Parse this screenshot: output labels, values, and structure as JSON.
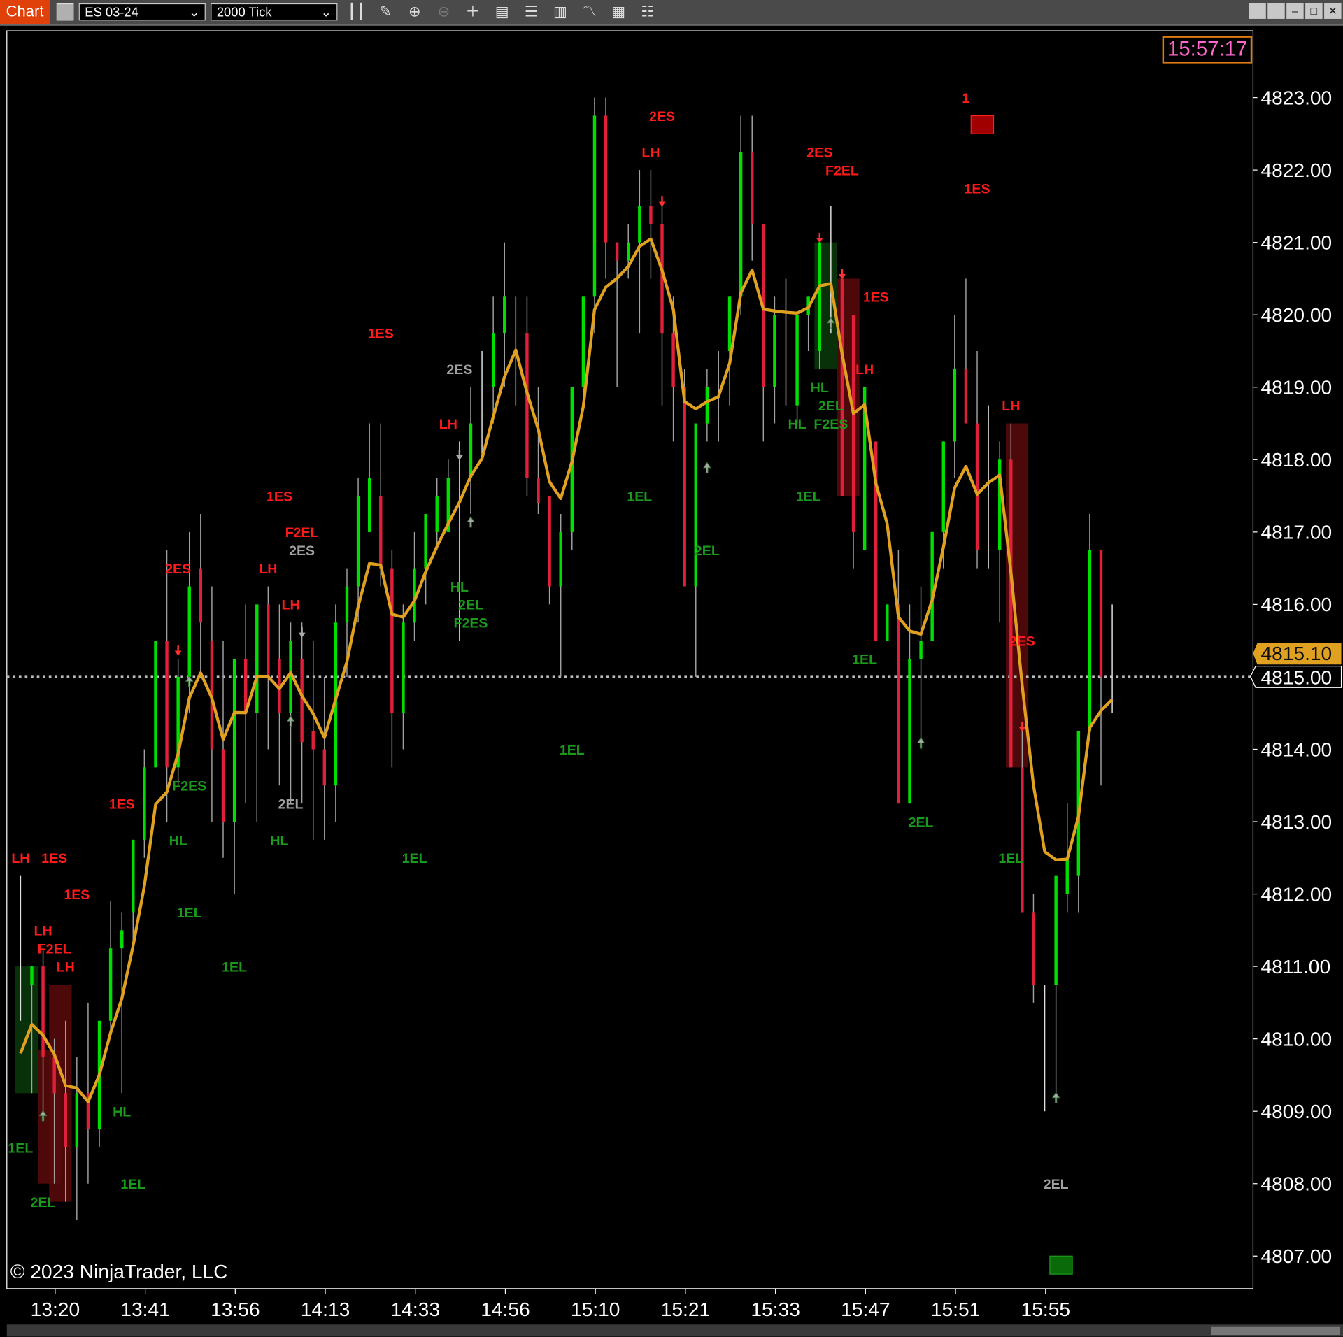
{
  "toolbar": {
    "title": "Chart",
    "instrument": "ES 03-24",
    "interval": "2000 Tick",
    "icons": [
      "bars-type-icon",
      "pencil-icon",
      "zoom-in-icon",
      "zoom-out-icon",
      "crosshair-icon",
      "data-box-icon",
      "templates-icon",
      "strategies-icon",
      "indicators-icon",
      "calculator-icon",
      "properties-icon"
    ],
    "window_buttons": [
      "tile-icon",
      "tile2-icon",
      "minimize-icon",
      "maximize-icon",
      "close-icon"
    ]
  },
  "clock": "15:57:17",
  "copyright": "© 2023 NinjaTrader, LLC",
  "colors": {
    "up": "#00e000",
    "down": "#e0203a",
    "wick": "#a0a0a0",
    "ema": "#e0a020",
    "label_red": "#ff1a1a",
    "label_green": "#1a9a1a",
    "label_gray": "#a0a0a0",
    "clock_border": "#e07a10",
    "clock_text": "#ff66cc",
    "current_price_bg": "#000000",
    "last_price_bg": "#e0a020"
  },
  "chart_data": {
    "type": "candlestick",
    "instrument": "ES 03-24",
    "interval": "2000 Tick",
    "ylim": [
      4806.6,
      4823.9
    ],
    "y_ticks": [
      "4823.00",
      "4822.00",
      "4821.00",
      "4820.00",
      "4819.00",
      "4818.00",
      "4817.00",
      "4816.00",
      "4815.00",
      "4814.00",
      "4813.00",
      "4812.00",
      "4811.00",
      "4810.00",
      "4809.00",
      "4808.00",
      "4807.00"
    ],
    "x_ticks": [
      {
        "bar": 3,
        "label": "13:20"
      },
      {
        "bar": 11,
        "label": "13:41"
      },
      {
        "bar": 19,
        "label": "13:56"
      },
      {
        "bar": 27,
        "label": "14:13"
      },
      {
        "bar": 35,
        "label": "14:33"
      },
      {
        "bar": 43,
        "label": "14:56"
      },
      {
        "bar": 51,
        "label": "15:10"
      },
      {
        "bar": 59,
        "label": "15:21"
      },
      {
        "bar": 67,
        "label": "15:33"
      },
      {
        "bar": 75,
        "label": "15:47"
      },
      {
        "bar": 83,
        "label": "15:51"
      },
      {
        "bar": 91,
        "label": "15:55"
      }
    ],
    "ohlc": [
      [
        4811,
        4812.25,
        4810.25,
        4811
      ],
      [
        4810.75,
        4811,
        4809.25,
        4811
      ],
      [
        4811,
        4811.25,
        4809,
        4809.75
      ],
      [
        4809.75,
        4810,
        4808,
        4809.25
      ],
      [
        4809.25,
        4810.25,
        4807.75,
        4808.5
      ],
      [
        4808.5,
        4809.75,
        4807.5,
        4809.25
      ],
      [
        4809.25,
        4810.5,
        4808,
        4808.75
      ],
      [
        4808.75,
        4810.25,
        4808.5,
        4810.25
      ],
      [
        4810.25,
        4811.9,
        4810,
        4811.25
      ],
      [
        4811.25,
        4811.75,
        4809.25,
        4811.5
      ],
      [
        4811.75,
        4812.75,
        4811.25,
        4812.75
      ],
      [
        4812.75,
        4814,
        4812.5,
        4813.75
      ],
      [
        4813.75,
        4815.5,
        4813.75,
        4815.5
      ],
      [
        4815.5,
        4816.75,
        4813,
        4813.75
      ],
      [
        4813.75,
        4815.25,
        4813.5,
        4815
      ],
      [
        4815,
        4817,
        4814.5,
        4816.25
      ],
      [
        4816.5,
        4817.25,
        4815,
        4815.75
      ],
      [
        4815.5,
        4816.25,
        4813,
        4814
      ],
      [
        4814,
        4815.5,
        4812.5,
        4813
      ],
      [
        4813,
        4815.25,
        4812,
        4815.25
      ],
      [
        4815.25,
        4816,
        4813.25,
        4814.5
      ],
      [
        4814.5,
        4816,
        4813,
        4816
      ],
      [
        4816,
        4816.25,
        4814,
        4815
      ],
      [
        4815.25,
        4816,
        4813.5,
        4814.5
      ],
      [
        4814.5,
        4815.75,
        4813.25,
        4815.5
      ],
      [
        4815.25,
        4815.75,
        4813.25,
        4814.1
      ],
      [
        4814.25,
        4815.5,
        4812.75,
        4814
      ],
      [
        4814,
        4815,
        4812.75,
        4813.5
      ],
      [
        4813.5,
        4816,
        4813,
        4815.75
      ],
      [
        4815.75,
        4816.5,
        4815,
        4816.25
      ],
      [
        4816.25,
        4817.75,
        4815.75,
        4817.5
      ],
      [
        4817,
        4818.5,
        4817,
        4817.75
      ],
      [
        4817.5,
        4818.5,
        4816.25,
        4816.5
      ],
      [
        4816.5,
        4816.75,
        4813.75,
        4814.5
      ],
      [
        4814.5,
        4816,
        4814,
        4815.75
      ],
      [
        4815.75,
        4817,
        4815.5,
        4816.5
      ],
      [
        4816.5,
        4817.25,
        4816,
        4817.25
      ],
      [
        4817,
        4817.75,
        4816.75,
        4817.5
      ],
      [
        4817,
        4818,
        4817,
        4817.75
      ],
      [
        4818,
        4818.25,
        4815.5,
        4818
      ],
      [
        4817.75,
        4819,
        4817.25,
        4818.5
      ],
      [
        4818.5,
        4819.5,
        4818,
        4818.5
      ],
      [
        4819,
        4820.25,
        4818.5,
        4819.75
      ],
      [
        4819.75,
        4821,
        4819,
        4820.25
      ],
      [
        4820.25,
        4820.25,
        4818.75,
        4820.25
      ],
      [
        4819.75,
        4820.25,
        4817.5,
        4817.75
      ],
      [
        4817.75,
        4819,
        4817.25,
        4817.4
      ],
      [
        4817.5,
        4817.5,
        4816,
        4816.25
      ],
      [
        4816.25,
        4817.25,
        4815,
        4817
      ],
      [
        4817,
        4819,
        4816.75,
        4819
      ],
      [
        4819,
        4820.25,
        4818.75,
        4820.25
      ],
      [
        4820.25,
        4823,
        4819.75,
        4822.75
      ],
      [
        4822.75,
        4823,
        4820.5,
        4821
      ],
      [
        4821,
        4821,
        4819,
        4820.75
      ],
      [
        4820.75,
        4821.25,
        4820.5,
        4821
      ],
      [
        4821,
        4822,
        4819.75,
        4821.5
      ],
      [
        4821.5,
        4822,
        4820.5,
        4821.25
      ],
      [
        4821.25,
        4821.5,
        4818.75,
        4819.75
      ],
      [
        4819.75,
        4820.25,
        4818.25,
        4819
      ],
      [
        4819,
        4819.25,
        4816.25,
        4816.25
      ],
      [
        4816.25,
        4818.5,
        4815,
        4818.5
      ],
      [
        4818.5,
        4819.25,
        4818.25,
        4819
      ],
      [
        4819,
        4819.5,
        4818.25,
        4819
      ],
      [
        4819.5,
        4820.25,
        4818.75,
        4820.25
      ],
      [
        4820.25,
        4822.75,
        4820,
        4822.25
      ],
      [
        4822.25,
        4822.75,
        4820.75,
        4821.25
      ],
      [
        4821.25,
        4821.25,
        4818.25,
        4819
      ],
      [
        4819,
        4820.25,
        4818.5,
        4820
      ],
      [
        4820,
        4820.5,
        4818.75,
        4820
      ],
      [
        4818.75,
        4820,
        4818.5,
        4820
      ],
      [
        4820,
        4820.25,
        4819.5,
        4820.25
      ],
      [
        4819.5,
        4821,
        4819.25,
        4821
      ],
      [
        4820.5,
        4821.5,
        4819.75,
        4820.5
      ],
      [
        4820.5,
        4820.5,
        4817.5,
        4817.5
      ],
      [
        4820,
        4820,
        4816.5,
        4817
      ],
      [
        4816.75,
        4819,
        4816.75,
        4819
      ],
      [
        4818.25,
        4818.25,
        4815.5,
        4815.5
      ],
      [
        4815.5,
        4816,
        4815.5,
        4816
      ],
      [
        4816,
        4816.75,
        4813.25,
        4813.25
      ],
      [
        4813.25,
        4816,
        4813.25,
        4815.25
      ],
      [
        4815.25,
        4816.25,
        4814,
        4815.5
      ],
      [
        4815.5,
        4817,
        4815.5,
        4817
      ],
      [
        4817,
        4818.25,
        4816.5,
        4818.25
      ],
      [
        4818.25,
        4820,
        4817.75,
        4819.25
      ],
      [
        4819.25,
        4820.5,
        4818.5,
        4818.5
      ],
      [
        4818.5,
        4819.5,
        4816.5,
        4816.75
      ],
      [
        4818,
        4818.75,
        4816.5,
        4818
      ],
      [
        4816.75,
        4818.25,
        4815.75,
        4818
      ],
      [
        4818,
        4818.5,
        4813.75,
        4813.75
      ],
      [
        4813.75,
        4814.25,
        4811.75,
        4811.75
      ],
      [
        4811.75,
        4812,
        4810.5,
        4810.75
      ],
      [
        4810.75,
        4810.75,
        4809,
        4810.75
      ],
      [
        4810.75,
        4812.25,
        4809.25,
        4812.25
      ],
      [
        4812,
        4813.25,
        4811.75,
        4812.5
      ],
      [
        4812.25,
        4814.25,
        4811.75,
        4814.25
      ],
      [
        4814.25,
        4817.25,
        4814.25,
        4816.75
      ],
      [
        4816.75,
        4816.75,
        4813.5,
        4815
      ],
      [
        4815,
        4816,
        4814.5,
        4815
      ]
    ],
    "ema_seed": 4809.8,
    "current_price": "4815.00",
    "last_price": "4815.10",
    "price_line": 4815,
    "labels": [
      {
        "t": "LH",
        "c": "red",
        "bar": 0,
        "p": 4812.5
      },
      {
        "t": "1ES",
        "c": "red",
        "bar": 3,
        "p": 4812.5
      },
      {
        "t": "1ES",
        "c": "red",
        "bar": 5,
        "p": 4812
      },
      {
        "t": "LH",
        "c": "red",
        "bar": 2,
        "p": 4811.5
      },
      {
        "t": "F2EL",
        "c": "red",
        "bar": 3,
        "p": 4811.25
      },
      {
        "t": "LH",
        "c": "red",
        "bar": 4,
        "p": 4811
      },
      {
        "t": "1EL",
        "c": "green",
        "bar": 0,
        "p": 4808.5
      },
      {
        "t": "2EL",
        "c": "green",
        "bar": 2,
        "p": 4807.75
      },
      {
        "t": "1EL",
        "c": "green",
        "bar": 10,
        "p": 4808
      },
      {
        "t": "HL",
        "c": "green",
        "bar": 9,
        "p": 4809
      },
      {
        "t": "1ES",
        "c": "red",
        "bar": 9,
        "p": 4813.25
      },
      {
        "t": "2ES",
        "c": "red",
        "bar": 14,
        "p": 4816.5
      },
      {
        "t": "F2ES",
        "c": "green",
        "bar": 15,
        "p": 4813.5
      },
      {
        "t": "HL",
        "c": "green",
        "bar": 14,
        "p": 4812.75
      },
      {
        "t": "1EL",
        "c": "green",
        "bar": 15,
        "p": 4811.75
      },
      {
        "t": "1EL",
        "c": "green",
        "bar": 19,
        "p": 4811
      },
      {
        "t": "1ES",
        "c": "red",
        "bar": 23,
        "p": 4817.5
      },
      {
        "t": "F2EL",
        "c": "red",
        "bar": 25,
        "p": 4817
      },
      {
        "t": "2ES",
        "c": "gray",
        "bar": 25,
        "p": 4816.75
      },
      {
        "t": "LH",
        "c": "red",
        "bar": 22,
        "p": 4816.5
      },
      {
        "t": "LH",
        "c": "red",
        "bar": 24,
        "p": 4816
      },
      {
        "t": "2EL",
        "c": "gray",
        "bar": 24,
        "p": 4813.25
      },
      {
        "t": "HL",
        "c": "green",
        "bar": 23,
        "p": 4812.75
      },
      {
        "t": "1ES",
        "c": "red",
        "bar": 32,
        "p": 4819.75
      },
      {
        "t": "2ES",
        "c": "gray",
        "bar": 39,
        "p": 4819.25
      },
      {
        "t": "LH",
        "c": "red",
        "bar": 38,
        "p": 4818.5
      },
      {
        "t": "1EL",
        "c": "green",
        "bar": 35,
        "p": 4812.5
      },
      {
        "t": "HL",
        "c": "green",
        "bar": 39,
        "p": 4816.25
      },
      {
        "t": "2EL",
        "c": "green",
        "bar": 40,
        "p": 4816
      },
      {
        "t": "F2ES",
        "c": "green",
        "bar": 40,
        "p": 4815.75
      },
      {
        "t": "1EL",
        "c": "green",
        "bar": 49,
        "p": 4814
      },
      {
        "t": "2ES",
        "c": "red",
        "bar": 57,
        "p": 4822.75
      },
      {
        "t": "LH",
        "c": "red",
        "bar": 56,
        "p": 4822.25
      },
      {
        "t": "1EL",
        "c": "green",
        "bar": 55,
        "p": 4817.5
      },
      {
        "t": "2EL",
        "c": "green",
        "bar": 61,
        "p": 4816.75
      },
      {
        "t": "2ES",
        "c": "red",
        "bar": 71,
        "p": 4822.25
      },
      {
        "t": "F2EL",
        "c": "red",
        "bar": 73,
        "p": 4822
      },
      {
        "t": "1ES",
        "c": "red",
        "bar": 76,
        "p": 4820.25
      },
      {
        "t": "LH",
        "c": "red",
        "bar": 75,
        "p": 4819.25
      },
      {
        "t": "HL",
        "c": "green",
        "bar": 71,
        "p": 4819
      },
      {
        "t": "2EL",
        "c": "green",
        "bar": 72,
        "p": 4818.75
      },
      {
        "t": "HL",
        "c": "green",
        "bar": 69,
        "p": 4818.5
      },
      {
        "t": "F2ES",
        "c": "green",
        "bar": 72,
        "p": 4818.5
      },
      {
        "t": "1EL",
        "c": "green",
        "bar": 70,
        "p": 4817.5
      },
      {
        "t": "1EL",
        "c": "green",
        "bar": 75,
        "p": 4815.25
      },
      {
        "t": "2EL",
        "c": "green",
        "bar": 80,
        "p": 4813
      },
      {
        "t": "1",
        "c": "red",
        "bar": 84,
        "p": 4823
      },
      {
        "t": "1ES",
        "c": "red",
        "bar": 85,
        "p": 4821.75
      },
      {
        "t": "LH",
        "c": "red",
        "bar": 88,
        "p": 4818.75
      },
      {
        "t": "2ES",
        "c": "red",
        "bar": 89,
        "p": 4815.5
      },
      {
        "t": "1EL",
        "c": "green",
        "bar": 88,
        "p": 4812.5
      },
      {
        "t": "2EL",
        "c": "gray",
        "bar": 92,
        "p": 4808
      }
    ],
    "arrows": [
      {
        "dir": "down",
        "c": "red",
        "bar": 14,
        "p": 4815.35
      },
      {
        "dir": "down",
        "c": "red",
        "bar": 57,
        "p": 4821.55
      },
      {
        "dir": "down",
        "c": "red",
        "bar": 71,
        "p": 4821.05
      },
      {
        "dir": "down",
        "c": "red",
        "bar": 73,
        "p": 4820.55
      },
      {
        "dir": "down",
        "c": "red",
        "bar": 89,
        "p": 4814.3
      },
      {
        "dir": "down",
        "c": "gray",
        "bar": 39,
        "p": 4818.05
      },
      {
        "dir": "down",
        "c": "gray",
        "bar": 25,
        "p": 4815.6
      },
      {
        "dir": "up",
        "c": "gray",
        "bar": 2,
        "p": 4808.95
      },
      {
        "dir": "up",
        "c": "gray",
        "bar": 15,
        "p": 4814.95
      },
      {
        "dir": "up",
        "c": "gray",
        "bar": 24,
        "p": 4814.4
      },
      {
        "dir": "up",
        "c": "gray",
        "bar": 40,
        "p": 4817.15
      },
      {
        "dir": "up",
        "c": "gray",
        "bar": 61,
        "p": 4817.9
      },
      {
        "dir": "up",
        "c": "gray",
        "bar": 72,
        "p": 4819.9
      },
      {
        "dir": "up",
        "c": "gray",
        "bar": 80,
        "p": 4814.1
      },
      {
        "dir": "up",
        "c": "gray",
        "bar": 92,
        "p": 4809.2
      }
    ],
    "zones": [
      {
        "c": "green",
        "b0": 0,
        "b1": 2,
        "top": 4811,
        "bot": 4809.25
      },
      {
        "c": "red",
        "b0": 2,
        "b1": 4,
        "top": 4809.85,
        "bot": 4808
      },
      {
        "c": "red",
        "b0": 3,
        "b1": 5,
        "top": 4810.75,
        "bot": 4807.75
      },
      {
        "c": "green",
        "b0": 71,
        "b1": 73,
        "top": 4821,
        "bot": 4819.25
      },
      {
        "c": "red",
        "b0": 73,
        "b1": 75,
        "top": 4820.5,
        "bot": 4817.5
      },
      {
        "c": "red",
        "b0": 88,
        "b1": 90,
        "top": 4818.5,
        "bot": 4813.75
      }
    ],
    "markers": [
      {
        "c": "red",
        "b0": 84,
        "b1": 86,
        "top": 4822.75,
        "bot": 4822.5
      },
      {
        "c": "green",
        "b0": 91,
        "b1": 93,
        "top": 4807,
        "bot": 4806.75
      }
    ]
  }
}
